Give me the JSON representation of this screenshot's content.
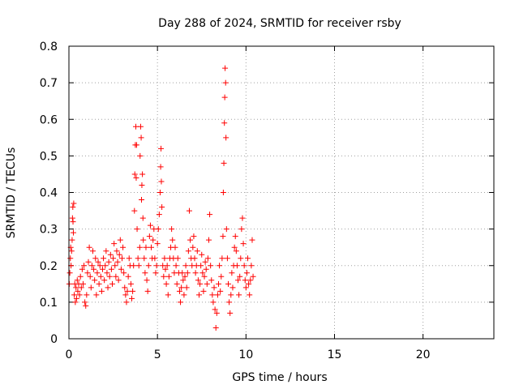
{
  "chart_data": {
    "type": "scatter",
    "title": "Day 288 of 2024, SRMTID for receiver rsby",
    "xlabel": "GPS time / hours",
    "ylabel": "SRMTID / TECUs",
    "xlim": [
      0,
      24
    ],
    "ylim": [
      0,
      0.8
    ],
    "xticks": [
      0,
      5,
      10,
      15,
      20
    ],
    "yticks": [
      0,
      0.1,
      0.2,
      0.3,
      0.4,
      0.5,
      0.6,
      0.7,
      0.8
    ],
    "grid": true,
    "marker": "+",
    "series": [
      {
        "name": "SRMTID",
        "color": "#ff0000",
        "points": [
          [
            0.02,
            0.15
          ],
          [
            0.05,
            0.18
          ],
          [
            0.08,
            0.22
          ],
          [
            0.1,
            0.25
          ],
          [
            0.12,
            0.2
          ],
          [
            0.15,
            0.24
          ],
          [
            0.18,
            0.27
          ],
          [
            0.2,
            0.33
          ],
          [
            0.22,
            0.36
          ],
          [
            0.23,
            0.32
          ],
          [
            0.25,
            0.29
          ],
          [
            0.27,
            0.37
          ],
          [
            0.3,
            0.12
          ],
          [
            0.33,
            0.15
          ],
          [
            0.36,
            0.1
          ],
          [
            0.4,
            0.14
          ],
          [
            0.43,
            0.11
          ],
          [
            0.47,
            0.16
          ],
          [
            0.5,
            0.13
          ],
          [
            0.55,
            0.15
          ],
          [
            0.6,
            0.12
          ],
          [
            0.65,
            0.17
          ],
          [
            0.7,
            0.14
          ],
          [
            0.75,
            0.19
          ],
          [
            0.8,
            0.15
          ],
          [
            0.85,
            0.2
          ],
          [
            0.9,
            0.1
          ],
          [
            0.95,
            0.09
          ],
          [
            1.0,
            0.12
          ],
          [
            1.05,
            0.18
          ],
          [
            1.1,
            0.21
          ],
          [
            1.15,
            0.25
          ],
          [
            1.2,
            0.17
          ],
          [
            1.25,
            0.14
          ],
          [
            1.3,
            0.2
          ],
          [
            1.35,
            0.24
          ],
          [
            1.4,
            0.19
          ],
          [
            1.45,
            0.16
          ],
          [
            1.5,
            0.22
          ],
          [
            1.55,
            0.12
          ],
          [
            1.6,
            0.18
          ],
          [
            1.65,
            0.21
          ],
          [
            1.7,
            0.15
          ],
          [
            1.75,
            0.2
          ],
          [
            1.8,
            0.17
          ],
          [
            1.85,
            0.13
          ],
          [
            1.9,
            0.19
          ],
          [
            1.95,
            0.22
          ],
          [
            2.0,
            0.16
          ],
          [
            2.05,
            0.2
          ],
          [
            2.1,
            0.24
          ],
          [
            2.15,
            0.18
          ],
          [
            2.2,
            0.14
          ],
          [
            2.25,
            0.21
          ],
          [
            2.3,
            0.17
          ],
          [
            2.35,
            0.23
          ],
          [
            2.4,
            0.19
          ],
          [
            2.45,
            0.15
          ],
          [
            2.5,
            0.22
          ],
          [
            2.55,
            0.26
          ],
          [
            2.6,
            0.2
          ],
          [
            2.65,
            0.17
          ],
          [
            2.7,
            0.24
          ],
          [
            2.75,
            0.21
          ],
          [
            2.8,
            0.16
          ],
          [
            2.85,
            0.23
          ],
          [
            2.9,
            0.27
          ],
          [
            2.95,
            0.19
          ],
          [
            3.0,
            0.22
          ],
          [
            3.05,
            0.25
          ],
          [
            3.1,
            0.18
          ],
          [
            3.15,
            0.14
          ],
          [
            3.2,
            0.12
          ],
          [
            3.25,
            0.1
          ],
          [
            3.3,
            0.13
          ],
          [
            3.35,
            0.17
          ],
          [
            3.4,
            0.22
          ],
          [
            3.45,
            0.2
          ],
          [
            3.5,
            0.15
          ],
          [
            3.55,
            0.11
          ],
          [
            3.6,
            0.13
          ],
          [
            3.65,
            0.2
          ],
          [
            3.7,
            0.35
          ],
          [
            3.72,
            0.45
          ],
          [
            3.75,
            0.53
          ],
          [
            3.78,
            0.58
          ],
          [
            3.8,
            0.44
          ],
          [
            3.82,
            0.53
          ],
          [
            3.85,
            0.3
          ],
          [
            3.9,
            0.22
          ],
          [
            3.95,
            0.2
          ],
          [
            4.0,
            0.25
          ],
          [
            4.02,
            0.5
          ],
          [
            4.05,
            0.58
          ],
          [
            4.08,
            0.55
          ],
          [
            4.1,
            0.38
          ],
          [
            4.12,
            0.42
          ],
          [
            4.15,
            0.45
          ],
          [
            4.18,
            0.33
          ],
          [
            4.2,
            0.27
          ],
          [
            4.25,
            0.22
          ],
          [
            4.3,
            0.18
          ],
          [
            4.35,
            0.25
          ],
          [
            4.4,
            0.16
          ],
          [
            4.45,
            0.13
          ],
          [
            4.5,
            0.2
          ],
          [
            4.55,
            0.28
          ],
          [
            4.6,
            0.31
          ],
          [
            4.65,
            0.25
          ],
          [
            4.7,
            0.22
          ],
          [
            4.75,
            0.27
          ],
          [
            4.8,
            0.3
          ],
          [
            4.85,
            0.22
          ],
          [
            4.9,
            0.18
          ],
          [
            4.95,
            0.2
          ],
          [
            5.0,
            0.26
          ],
          [
            5.05,
            0.3
          ],
          [
            5.1,
            0.34
          ],
          [
            5.15,
            0.4
          ],
          [
            5.18,
            0.47
          ],
          [
            5.2,
            0.52
          ],
          [
            5.22,
            0.43
          ],
          [
            5.25,
            0.36
          ],
          [
            5.3,
            0.2
          ],
          [
            5.35,
            0.17
          ],
          [
            5.4,
            0.22
          ],
          [
            5.45,
            0.19
          ],
          [
            5.5,
            0.15
          ],
          [
            5.55,
            0.2
          ],
          [
            5.6,
            0.12
          ],
          [
            5.65,
            0.17
          ],
          [
            5.7,
            0.22
          ],
          [
            5.75,
            0.25
          ],
          [
            5.8,
            0.3
          ],
          [
            5.85,
            0.27
          ],
          [
            5.9,
            0.22
          ],
          [
            5.95,
            0.18
          ],
          [
            6.0,
            0.25
          ],
          [
            6.05,
            0.2
          ],
          [
            6.1,
            0.15
          ],
          [
            6.15,
            0.22
          ],
          [
            6.2,
            0.18
          ],
          [
            6.25,
            0.13
          ],
          [
            6.3,
            0.1
          ],
          [
            6.35,
            0.14
          ],
          [
            6.4,
            0.18
          ],
          [
            6.45,
            0.16
          ],
          [
            6.5,
            0.12
          ],
          [
            6.55,
            0.17
          ],
          [
            6.6,
            0.2
          ],
          [
            6.65,
            0.14
          ],
          [
            6.7,
            0.18
          ],
          [
            6.75,
            0.24
          ],
          [
            6.8,
            0.35
          ],
          [
            6.85,
            0.27
          ],
          [
            6.9,
            0.22
          ],
          [
            6.95,
            0.2
          ],
          [
            7.0,
            0.25
          ],
          [
            7.05,
            0.28
          ],
          [
            7.1,
            0.22
          ],
          [
            7.15,
            0.18
          ],
          [
            7.2,
            0.2
          ],
          [
            7.25,
            0.24
          ],
          [
            7.3,
            0.16
          ],
          [
            7.35,
            0.12
          ],
          [
            7.4,
            0.15
          ],
          [
            7.45,
            0.2
          ],
          [
            7.5,
            0.23
          ],
          [
            7.55,
            0.18
          ],
          [
            7.6,
            0.13
          ],
          [
            7.65,
            0.17
          ],
          [
            7.7,
            0.21
          ],
          [
            7.75,
            0.19
          ],
          [
            7.8,
            0.15
          ],
          [
            7.85,
            0.22
          ],
          [
            7.9,
            0.27
          ],
          [
            7.95,
            0.34
          ],
          [
            8.0,
            0.2
          ],
          [
            8.05,
            0.16
          ],
          [
            8.1,
            0.12
          ],
          [
            8.15,
            0.1
          ],
          [
            8.2,
            0.14
          ],
          [
            8.25,
            0.08
          ],
          [
            8.3,
            0.03
          ],
          [
            8.35,
            0.07
          ],
          [
            8.4,
            0.12
          ],
          [
            8.45,
            0.15
          ],
          [
            8.5,
            0.2
          ],
          [
            8.55,
            0.13
          ],
          [
            8.6,
            0.17
          ],
          [
            8.65,
            0.22
          ],
          [
            8.7,
            0.28
          ],
          [
            8.72,
            0.4
          ],
          [
            8.75,
            0.48
          ],
          [
            8.78,
            0.59
          ],
          [
            8.8,
            0.66
          ],
          [
            8.82,
            0.74
          ],
          [
            8.85,
            0.7
          ],
          [
            8.87,
            0.55
          ],
          [
            8.9,
            0.3
          ],
          [
            8.95,
            0.22
          ],
          [
            9.0,
            0.15
          ],
          [
            9.05,
            0.1
          ],
          [
            9.1,
            0.07
          ],
          [
            9.15,
            0.12
          ],
          [
            9.2,
            0.18
          ],
          [
            9.25,
            0.14
          ],
          [
            9.3,
            0.2
          ],
          [
            9.35,
            0.25
          ],
          [
            9.4,
            0.28
          ],
          [
            9.45,
            0.24
          ],
          [
            9.5,
            0.2
          ],
          [
            9.55,
            0.16
          ],
          [
            9.6,
            0.12
          ],
          [
            9.65,
            0.17
          ],
          [
            9.7,
            0.22
          ],
          [
            9.75,
            0.3
          ],
          [
            9.8,
            0.33
          ],
          [
            9.85,
            0.26
          ],
          [
            9.9,
            0.2
          ],
          [
            9.95,
            0.16
          ],
          [
            10.0,
            0.14
          ],
          [
            10.05,
            0.18
          ],
          [
            10.1,
            0.22
          ],
          [
            10.15,
            0.15
          ],
          [
            10.2,
            0.12
          ],
          [
            10.25,
            0.16
          ],
          [
            10.3,
            0.2
          ],
          [
            10.35,
            0.27
          ],
          [
            10.4,
            0.17
          ]
        ]
      }
    ]
  }
}
